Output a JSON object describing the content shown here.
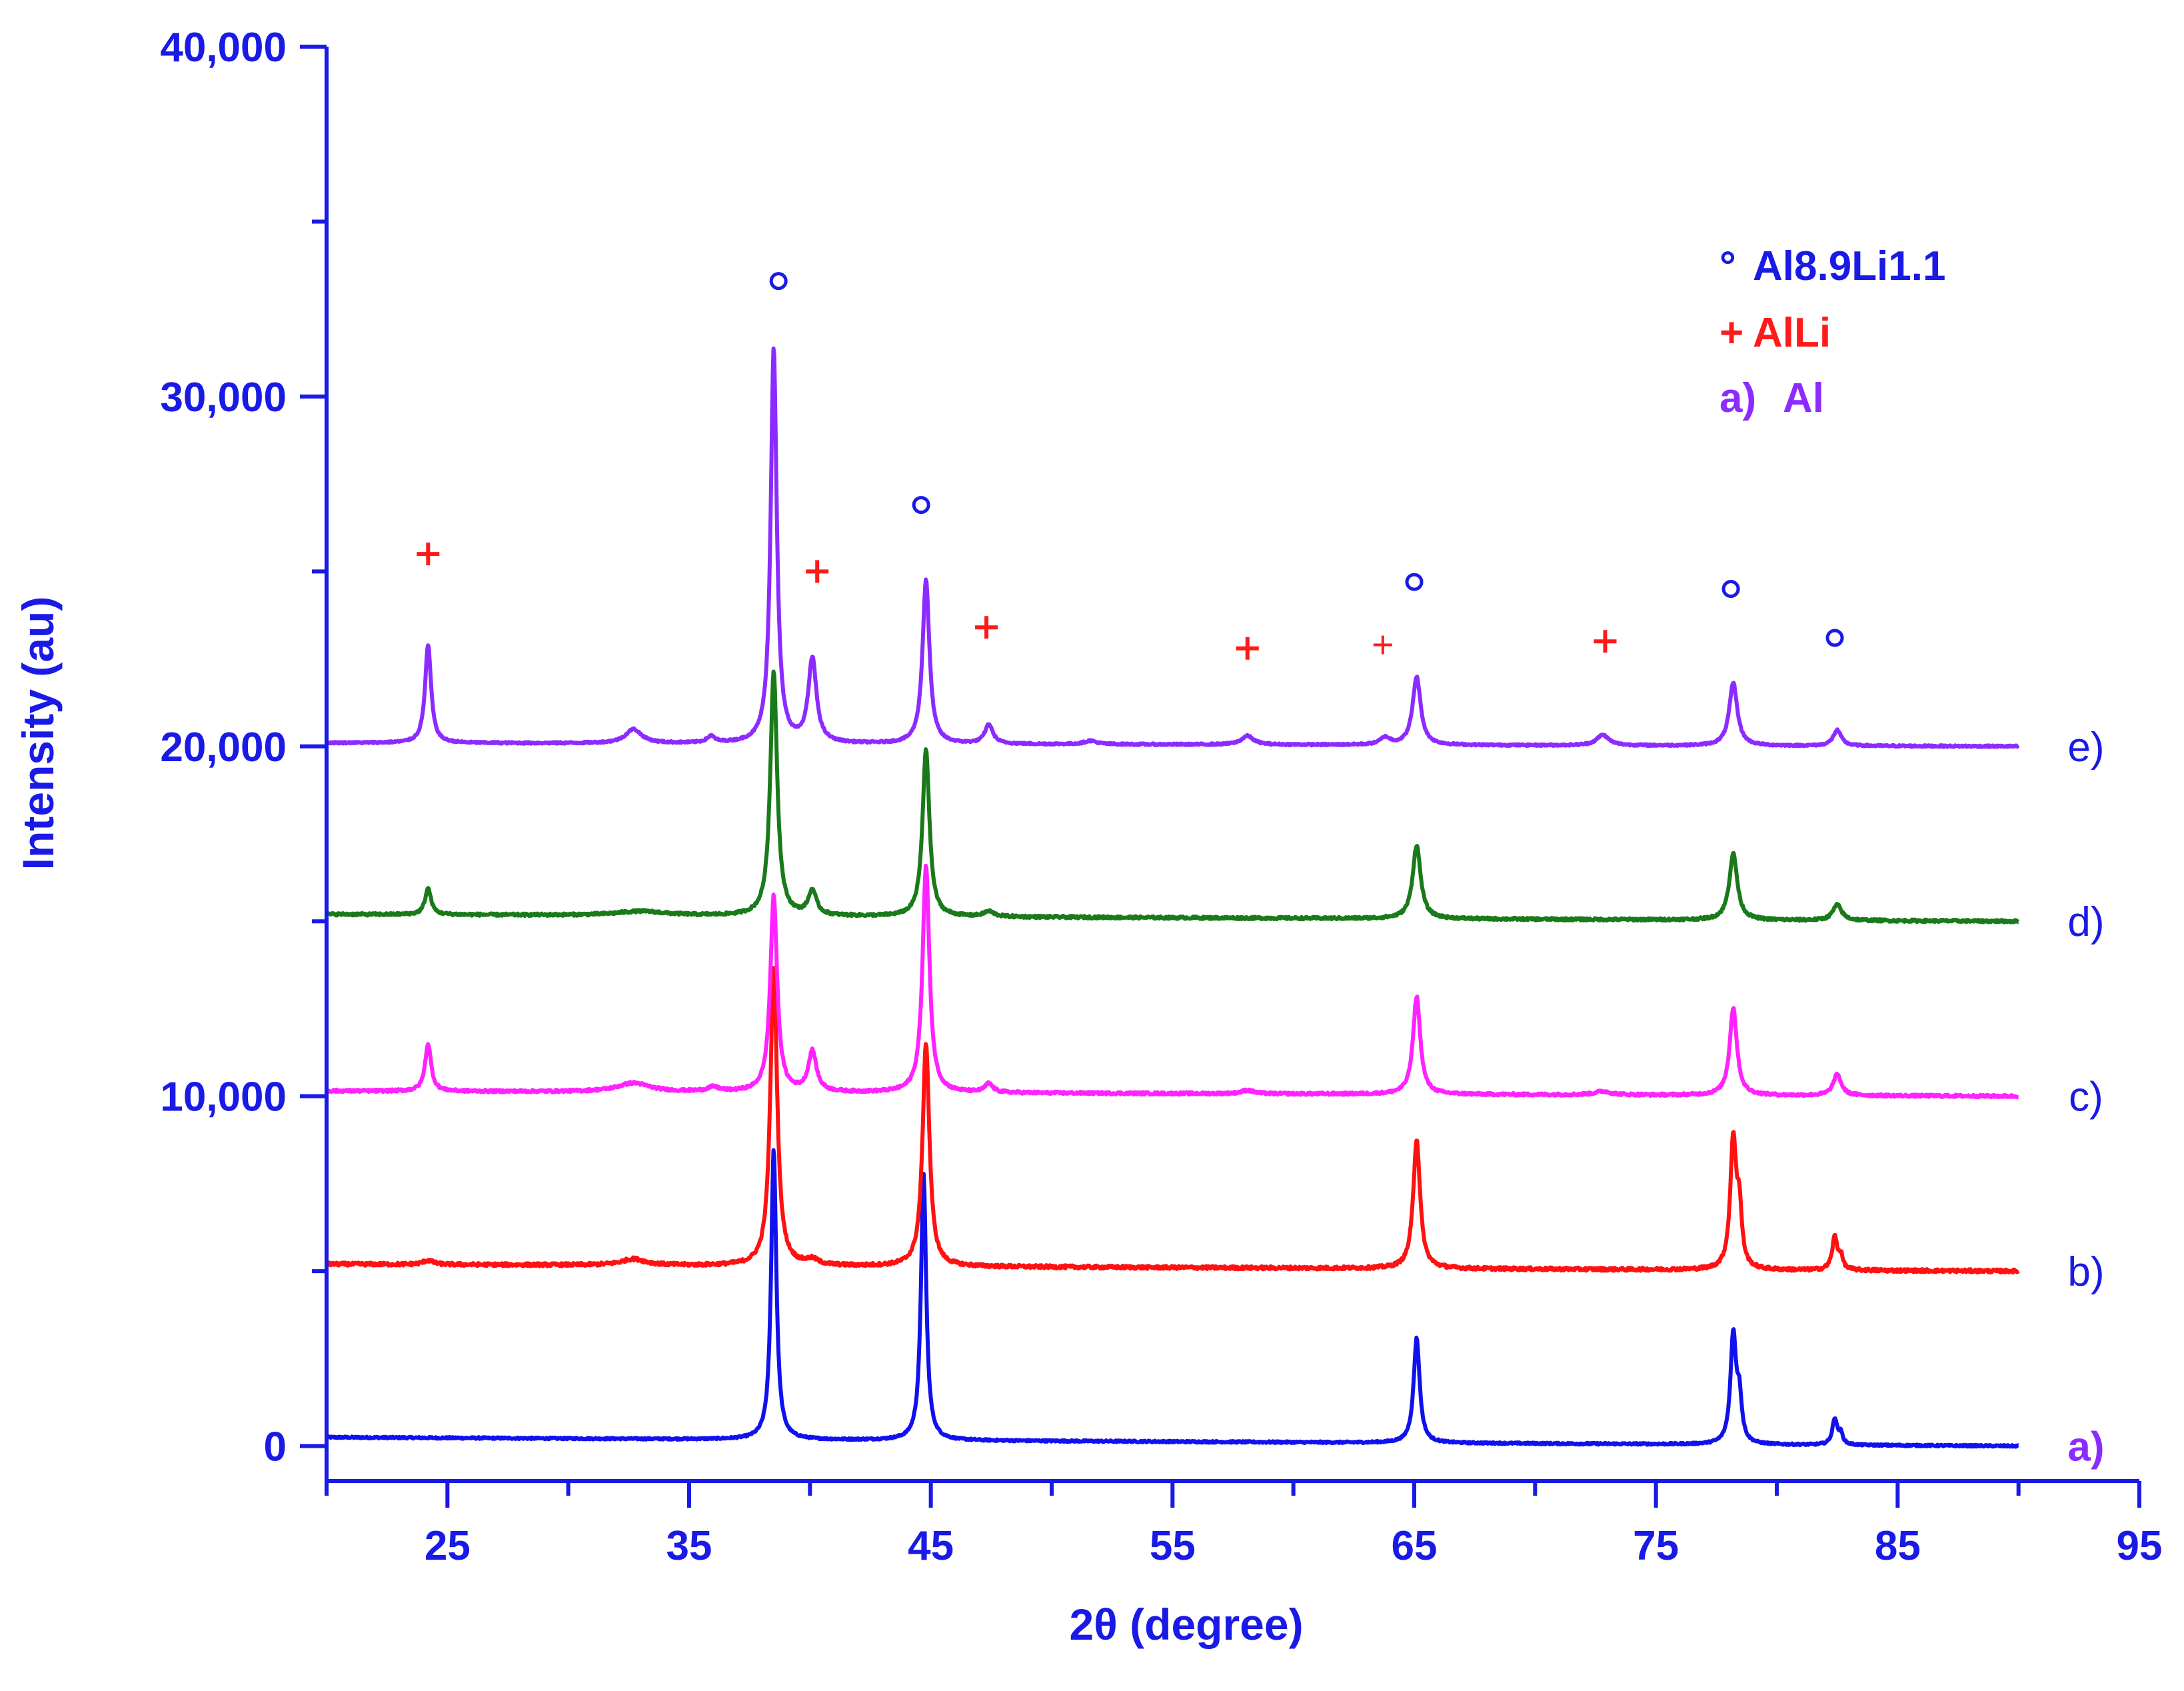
{
  "colors": {
    "axis": "#1a1ae6",
    "text": "#1a1ae6",
    "plus": "#ff1a1a",
    "circle": "#1a1ae6",
    "trace_a": "#1111ee",
    "trace_b": "#ff1111",
    "trace_c": "#ff22ff",
    "trace_d": "#1a7a1a",
    "trace_e": "#8c2bff"
  },
  "chart_data": {
    "type": "line",
    "title": "",
    "xlabel": "2θ (degree)",
    "ylabel": "Intensity (au)",
    "xlim": [
      20,
      95
    ],
    "ylim": [
      -1000,
      40000
    ],
    "xticks": [
      25,
      35,
      45,
      55,
      65,
      75,
      85,
      95
    ],
    "xtick_labels": [
      "25",
      "35",
      "45",
      "55",
      "65",
      "75",
      "85",
      "95"
    ],
    "yticks": [
      0,
      10000,
      20000,
      30000,
      40000
    ],
    "ytick_labels": [
      "0",
      "10,000",
      "20,000",
      "30,000",
      "40,000"
    ],
    "legend": {
      "position": "top-right",
      "entries": [
        {
          "symbol": "°",
          "label": "Al8.9Li1.1",
          "color": "#1a1ae6"
        },
        {
          "symbol": "+",
          "label": "AlLi",
          "color": "#ff1a1a"
        },
        {
          "symbol": "a)",
          "label": "Al",
          "color": "#8c2bff"
        }
      ]
    },
    "series": [
      {
        "name": "a)",
        "color": "#1111ee",
        "baseline_start": 250,
        "baseline_end": 0,
        "noise": 25,
        "peaks": [
          [
            38.5,
            8300,
            0.13
          ],
          [
            44.7,
            7600,
            0.13
          ],
          [
            65.1,
            3000,
            0.15
          ],
          [
            78.2,
            3100,
            0.14
          ],
          [
            78.45,
            1200,
            0.12
          ],
          [
            82.4,
            750,
            0.12
          ],
          [
            82.65,
            300,
            0.1
          ]
        ]
      },
      {
        "name": "b)",
        "color": "#ff1111",
        "baseline_start": 5200,
        "baseline_end": 5000,
        "noise": 45,
        "peaks": [
          [
            38.5,
            8500,
            0.17
          ],
          [
            44.8,
            6400,
            0.17
          ],
          [
            65.1,
            3700,
            0.17
          ],
          [
            78.2,
            3700,
            0.15
          ],
          [
            78.45,
            1500,
            0.12
          ],
          [
            82.4,
            950,
            0.13
          ],
          [
            82.65,
            350,
            0.1
          ],
          [
            40.1,
            150,
            0.3
          ],
          [
            24.2,
            120,
            0.25
          ],
          [
            32.7,
            180,
            0.6
          ]
        ]
      },
      {
        "name": "c)",
        "color": "#ff22ff",
        "baseline_start": 10150,
        "baseline_end": 10000,
        "noise": 35,
        "peaks": [
          [
            38.5,
            5600,
            0.17
          ],
          [
            44.8,
            6500,
            0.17
          ],
          [
            65.1,
            2800,
            0.18
          ],
          [
            78.2,
            2500,
            0.18
          ],
          [
            82.5,
            600,
            0.2
          ],
          [
            24.2,
            1350,
            0.15
          ],
          [
            40.1,
            1150,
            0.2
          ],
          [
            47.4,
            250,
            0.2
          ],
          [
            32.7,
            250,
            0.8
          ],
          [
            36,
            120,
            0.3
          ],
          [
            72.8,
            100,
            0.4
          ],
          [
            58.1,
            100,
            0.3
          ]
        ]
      },
      {
        "name": "d)",
        "color": "#1a7a1a",
        "baseline_start": 15200,
        "baseline_end": 15000,
        "noise": 35,
        "peaks": [
          [
            38.5,
            7000,
            0.17
          ],
          [
            44.8,
            4800,
            0.17
          ],
          [
            65.1,
            2100,
            0.2
          ],
          [
            78.2,
            1900,
            0.2
          ],
          [
            82.5,
            450,
            0.22
          ],
          [
            24.2,
            750,
            0.15
          ],
          [
            40.1,
            700,
            0.2
          ],
          [
            47.4,
            150,
            0.25
          ],
          [
            33,
            120,
            1.2
          ]
        ]
      },
      {
        "name": "e)",
        "color": "#8c2bff",
        "baseline_start": 20100,
        "baseline_end": 20000,
        "noise": 25,
        "peaks": [
          [
            38.5,
            11300,
            0.15
          ],
          [
            24.2,
            2800,
            0.15
          ],
          [
            40.1,
            2400,
            0.2
          ],
          [
            44.8,
            4700,
            0.17
          ],
          [
            47.4,
            550,
            0.2
          ],
          [
            65.1,
            1950,
            0.2
          ],
          [
            78.2,
            1800,
            0.2
          ],
          [
            82.5,
            450,
            0.2
          ],
          [
            32.7,
            400,
            0.4
          ],
          [
            35.9,
            180,
            0.2
          ],
          [
            58.1,
            250,
            0.3
          ],
          [
            63.8,
            200,
            0.25
          ],
          [
            72.8,
            300,
            0.3
          ],
          [
            51.6,
            100,
            0.3
          ]
        ]
      }
    ],
    "series_x_range": [
      20,
      90
    ],
    "trace_labels": [
      {
        "text": "a)",
        "y": 0,
        "color": "#8c2bff"
      },
      {
        "text": "b)",
        "y": 5000,
        "color": "#1a1ae6"
      },
      {
        "text": "c)",
        "y": 10000,
        "color": "#1a1ae6"
      },
      {
        "text": "d)",
        "y": 15000,
        "color": "#1a1ae6"
      },
      {
        "text": "e)",
        "y": 20000,
        "color": "#1a1ae6"
      }
    ],
    "annotations": [
      {
        "symbol": "°",
        "x": 38.7,
        "y": 33300,
        "color": "#1a1ae6",
        "kind": "circle"
      },
      {
        "symbol": "°",
        "x": 44.6,
        "y": 26900,
        "color": "#1a1ae6",
        "kind": "circle"
      },
      {
        "symbol": "°",
        "x": 65.0,
        "y": 24700,
        "color": "#1a1ae6",
        "kind": "circle"
      },
      {
        "symbol": "°",
        "x": 78.1,
        "y": 24500,
        "color": "#1a1ae6",
        "kind": "circle"
      },
      {
        "symbol": "°",
        "x": 82.4,
        "y": 23100,
        "color": "#1a1ae6",
        "kind": "circle"
      },
      {
        "symbol": "+",
        "x": 24.2,
        "y": 25500,
        "color": "#ff1a1a",
        "kind": "plus"
      },
      {
        "symbol": "+",
        "x": 40.3,
        "y": 25000,
        "color": "#ff1a1a",
        "kind": "plus"
      },
      {
        "symbol": "+",
        "x": 47.3,
        "y": 23400,
        "color": "#ff1a1a",
        "kind": "plus"
      },
      {
        "symbol": "+",
        "x": 58.1,
        "y": 22800,
        "color": "#ff1a1a",
        "kind": "plus"
      },
      {
        "symbol": "+",
        "x": 63.7,
        "y": 22900,
        "color": "#ff1a1a",
        "kind": "plus-small"
      },
      {
        "symbol": "+",
        "x": 72.9,
        "y": 23000,
        "color": "#ff1a1a",
        "kind": "plus"
      }
    ]
  }
}
